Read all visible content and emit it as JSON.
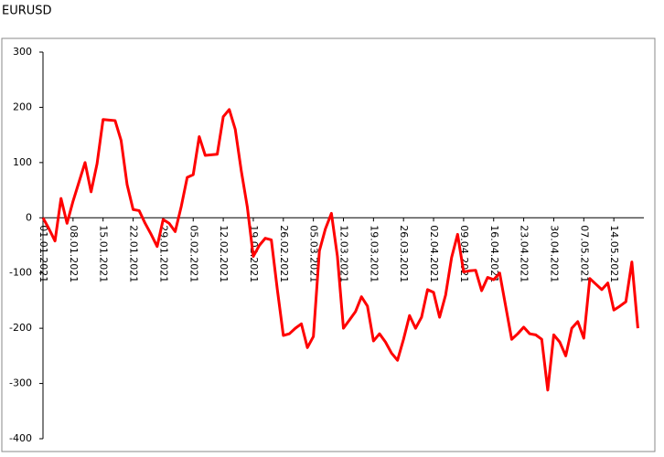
{
  "chart_data": {
    "type": "line",
    "title": "EURUSD",
    "categories": [
      "01.01.2021",
      null,
      null,
      null,
      null,
      "08.01.2021",
      null,
      null,
      null,
      null,
      "15.01.2021",
      null,
      null,
      null,
      null,
      "22.01.2021",
      null,
      null,
      null,
      null,
      "29.01.2021",
      null,
      null,
      null,
      null,
      "05.02.2021",
      null,
      null,
      null,
      null,
      "12.02.2021",
      null,
      null,
      null,
      null,
      "19.02.2021",
      null,
      null,
      null,
      null,
      "26.02.2021",
      null,
      null,
      null,
      null,
      "05.03.2021",
      null,
      null,
      null,
      null,
      "12.03.2021",
      null,
      null,
      null,
      null,
      "19.03.2021",
      null,
      null,
      null,
      null,
      "26.03.2021",
      null,
      null,
      null,
      null,
      "02.04.2021",
      null,
      null,
      null,
      null,
      "09.04.2021",
      null,
      null,
      null,
      null,
      "16.04.2021",
      null,
      null,
      null,
      null,
      "23.04.2021",
      null,
      null,
      null,
      null,
      "30.04.2021",
      null,
      null,
      null,
      null,
      "07.05.2021",
      null,
      null,
      null,
      null,
      "14.05.2021",
      null,
      null,
      null,
      null
    ],
    "series": [
      {
        "name": "EURUSD",
        "color": "#ff0000",
        "values": [
          0,
          -20,
          -42,
          35,
          -10,
          30,
          65,
          100,
          47,
          98,
          178,
          177,
          176,
          140,
          60,
          15,
          13,
          -10,
          -30,
          -52,
          -3,
          -10,
          -25,
          20,
          73,
          78,
          147,
          113,
          114,
          115,
          183,
          196,
          160,
          85,
          20,
          -70,
          -50,
          -37,
          -40,
          -130,
          -213,
          -210,
          -200,
          -192,
          -235,
          -215,
          -60,
          -20,
          8,
          -70,
          -200,
          -185,
          -170,
          -143,
          -160,
          -223,
          -210,
          -225,
          -245,
          -258,
          -220,
          -177,
          -200,
          -180,
          -130,
          -135,
          -180,
          -140,
          -72,
          -30,
          -98,
          -96,
          -95,
          -132,
          -108,
          -112,
          -100,
          -160,
          -220,
          -210,
          -198,
          -210,
          -212,
          -220,
          -312,
          -212,
          -225,
          -250,
          -200,
          -188,
          -218,
          -110,
          -120,
          -130,
          -118,
          -167,
          -160,
          -152,
          -80,
          -200
        ]
      }
    ],
    "ylim": [
      -400,
      300
    ],
    "yticks": [
      -400,
      -300,
      -200,
      -100,
      0,
      100,
      200,
      300
    ],
    "grid": false
  }
}
